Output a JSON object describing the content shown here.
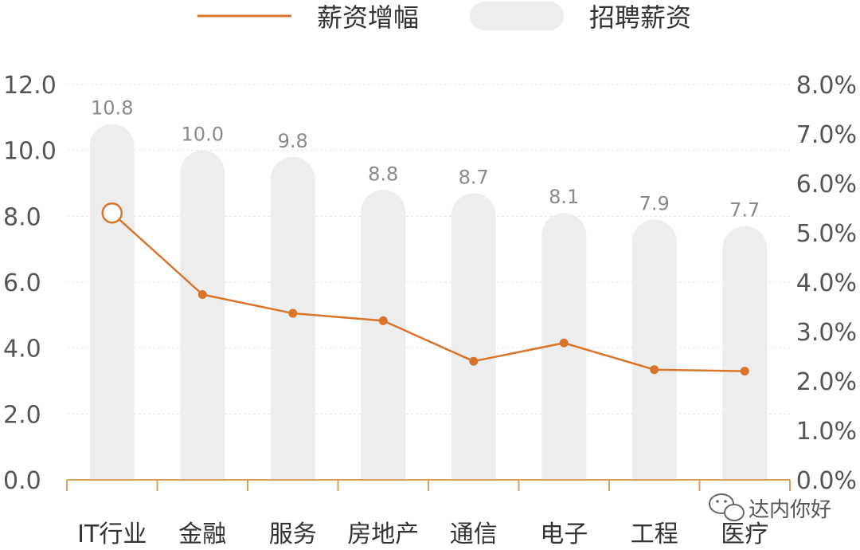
{
  "chart_data": {
    "type": "bar",
    "categories": [
      "IT行业",
      "金融",
      "服务",
      "房地产",
      "通信",
      "电子",
      "工程",
      "医疗"
    ],
    "series": [
      {
        "name": "招聘薪资",
        "type": "bar",
        "axis": "left",
        "values": [
          10.8,
          10.0,
          9.8,
          8.8,
          8.7,
          8.1,
          7.9,
          7.7
        ],
        "data_labels": [
          "10.8",
          "10.0",
          "9.8",
          "8.8",
          "8.7",
          "8.1",
          "7.9",
          "7.7"
        ],
        "color": "#ededed"
      },
      {
        "name": "薪资增幅",
        "type": "line",
        "axis": "right",
        "values": [
          5.4,
          3.75,
          3.37,
          3.22,
          2.4,
          2.77,
          2.23,
          2.2
        ],
        "color": "#d9752b"
      }
    ],
    "y_left": {
      "ylim": [
        0,
        12
      ],
      "ticks": [
        "0.0",
        "2.0",
        "4.0",
        "6.0",
        "8.0",
        "10.0",
        "12.0"
      ]
    },
    "y_right": {
      "ylim": [
        0,
        8
      ],
      "ticks": [
        "0.0%",
        "1.0%",
        "2.0%",
        "3.0%",
        "4.0%",
        "5.0%",
        "6.0%",
        "7.0%",
        "8.0%"
      ]
    },
    "grid": true,
    "legend": {
      "placement": "top-center",
      "entries": [
        "薪资增幅",
        "招聘薪资"
      ]
    },
    "title": "",
    "xlabel": "",
    "ylabel": ""
  },
  "watermark": {
    "text": "达内你好",
    "icon": "wechat-icon"
  },
  "colors": {
    "accent": "#d9752b",
    "bar": "#ededed",
    "axis": "#d9a05c",
    "grid": "#e9e2d6"
  }
}
